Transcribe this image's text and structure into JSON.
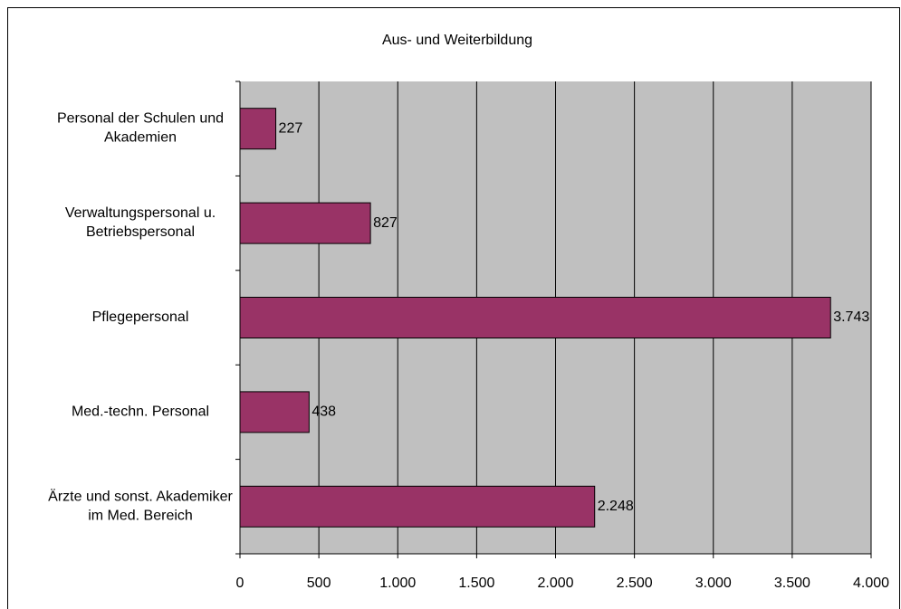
{
  "chart_data": {
    "type": "bar",
    "orientation": "horizontal",
    "title": "Aus- und Weiterbildung",
    "categories": [
      "Personal der Schulen und Akademien",
      "Verwaltungspersonal u. Betriebspersonal",
      "Pflegepersonal",
      "Med.-techn. Personal",
      "Ärzte und sonst. Akademiker im Med. Bereich"
    ],
    "values": [
      227,
      827,
      3743,
      438,
      2248
    ],
    "value_labels": [
      "227",
      "827",
      "3.743",
      "438",
      "2.248"
    ],
    "color": "#993366",
    "xlim": [
      0,
      4000
    ],
    "xticks": [
      0,
      500,
      {
        "value": 1000,
        "label": "1.000"
      },
      {
        "value": 1500,
        "label": "1.500"
      },
      {
        "value": 2000,
        "label": "2.000"
      },
      {
        "value": 2500,
        "label": "2.500"
      },
      {
        "value": 3000,
        "label": "3.000"
      },
      {
        "value": 3500,
        "label": "3.500"
      },
      {
        "value": 4000,
        "label": "4.000"
      }
    ],
    "grid": true
  }
}
